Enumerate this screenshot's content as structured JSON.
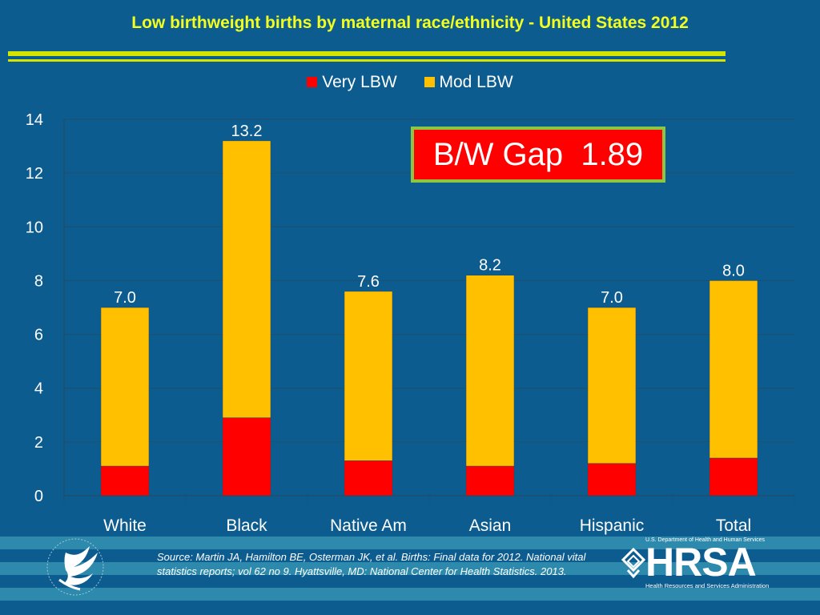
{
  "title": "Low birthweight births by maternal race/ethnicity - United States 2012",
  "chart_data": {
    "type": "bar",
    "stacked": true,
    "categories": [
      "White",
      "Black",
      "Native Am",
      "Asian",
      "Hispanic",
      "Total"
    ],
    "series": [
      {
        "name": "Very LBW",
        "color": "#ff0000",
        "values": [
          1.1,
          2.9,
          1.3,
          1.1,
          1.2,
          1.4
        ]
      },
      {
        "name": "Mod LBW",
        "color": "#ffc000",
        "values": [
          5.9,
          10.3,
          6.3,
          7.1,
          5.8,
          6.6
        ]
      }
    ],
    "totals": [
      7.0,
      13.2,
      7.6,
      8.2,
      7.0,
      8.0
    ],
    "total_labels": [
      "7.0",
      "13.2",
      "7.6",
      "8.2",
      "7.0",
      "8.0"
    ],
    "yticks": [
      "0",
      "2",
      "4",
      "6",
      "8",
      "10",
      "12",
      "14"
    ],
    "ylim": [
      0,
      14
    ],
    "grid": true,
    "legend_position": "top",
    "annotation": "B/W Gap  1.89"
  },
  "source": "Source: Martin JA, Hamilton BE, Osterman JK, et al. Births: Final data for 2012. National vital statistics reports; vol 62 no 9. Hyattsville, MD: National Center for Health Statistics. 2013.",
  "hrsa": {
    "top_text": "U.S. Department of Health and Human Services",
    "wordmark": "HRSA",
    "subtitle": "Health Resources and Services Administration"
  },
  "icons": {
    "hhs_logo": "hhs-eagle-logo-icon",
    "hrsa_mark": "hrsa-knot-icon"
  },
  "colors": {
    "background": "#0d5c8f",
    "title": "#f2ff1f",
    "rule": "#d4e600",
    "gap_box": "#ff0000",
    "gap_border": "#8dc63f"
  }
}
